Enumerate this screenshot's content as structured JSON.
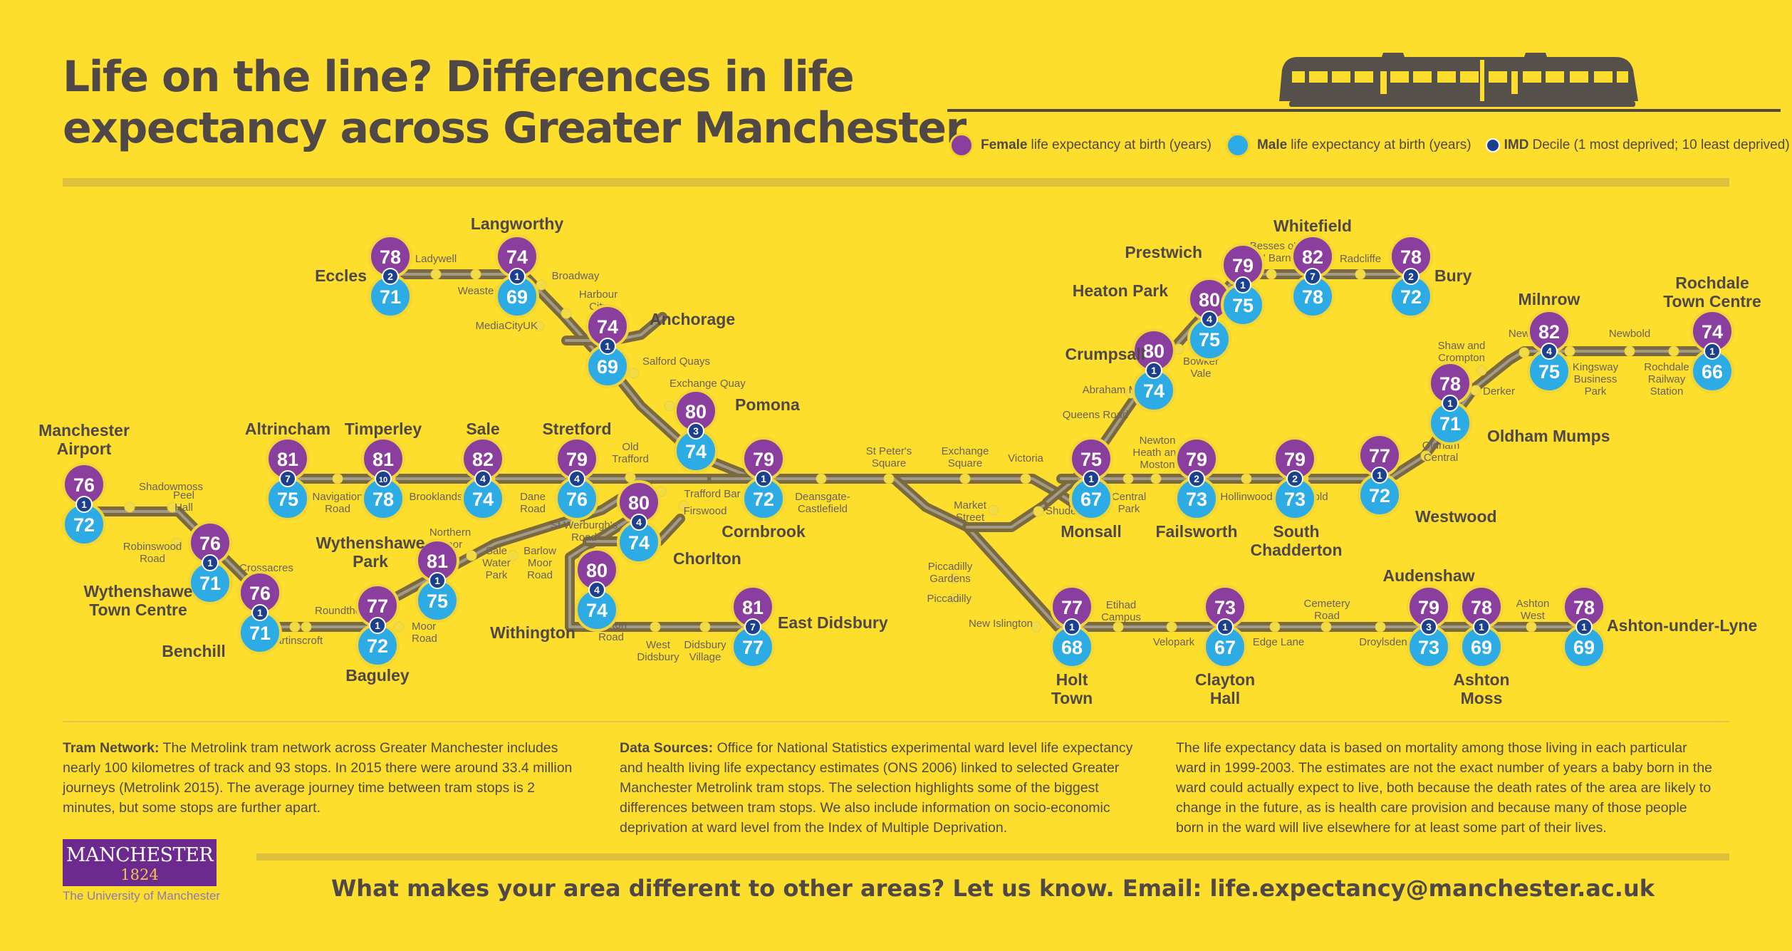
{
  "header": {
    "title_line1": "Life on the line? Differences in life",
    "title_line2": "expectancy across Greater Manchester"
  },
  "legend": {
    "female_bold": "Female",
    "female_text": "life expectancy at birth (years)",
    "male_bold": "Male",
    "male_text": "life expectancy at birth (years)",
    "imd_bold": "IMD",
    "imd_text": "Decile (1 most deprived; 10 least deprived)"
  },
  "colors": {
    "background": "#FDDE2D",
    "female": "#8A3E9E",
    "male": "#2CABE4",
    "imd": "#1C3F8E",
    "track": "#8A7848",
    "text": "#4F4847"
  },
  "stations": [
    {
      "id": "manchester_airport",
      "name": "Manchester\nAirport",
      "female": 76,
      "male": 72,
      "imd": 1
    },
    {
      "id": "wythenshawe_town_centre",
      "name": "Wythenshawe\nTown Centre",
      "female": 76,
      "male": 71,
      "imd": 1
    },
    {
      "id": "benchill",
      "name": "Benchill",
      "female": 76,
      "male": 71,
      "imd": 1
    },
    {
      "id": "baguley",
      "name": "Baguley",
      "female": 77,
      "male": 72,
      "imd": 1
    },
    {
      "id": "wythenshawe_park",
      "name": "Wythenshawe\nPark",
      "female": 81,
      "male": 75,
      "imd": 1
    },
    {
      "id": "altrincham",
      "name": "Altrincham",
      "female": 81,
      "male": 75,
      "imd": 7
    },
    {
      "id": "timperley",
      "name": "Timperley",
      "female": 81,
      "male": 78,
      "imd": 10
    },
    {
      "id": "sale",
      "name": "Sale",
      "female": 82,
      "male": 74,
      "imd": 4
    },
    {
      "id": "stretford",
      "name": "Stretford",
      "female": 79,
      "male": 76,
      "imd": 4
    },
    {
      "id": "chorlton",
      "name": "Chorlton",
      "female": 80,
      "male": 74,
      "imd": 4
    },
    {
      "id": "withington",
      "name": "Withington",
      "female": 80,
      "male": 74,
      "imd": 4
    },
    {
      "id": "east_didsbury",
      "name": "East Didsbury",
      "female": 81,
      "male": 77,
      "imd": 7
    },
    {
      "id": "eccles",
      "name": "Eccles",
      "female": 78,
      "male": 71,
      "imd": 2
    },
    {
      "id": "langworthy",
      "name": "Langworthy",
      "female": 74,
      "male": 69,
      "imd": 1
    },
    {
      "id": "anchorage",
      "name": "Anchorage",
      "female": 74,
      "male": 69,
      "imd": 1
    },
    {
      "id": "pomona",
      "name": "Pomona",
      "female": 80,
      "male": 74,
      "imd": 3
    },
    {
      "id": "cornbrook",
      "name": "Cornbrook",
      "female": 79,
      "male": 72,
      "imd": 1
    },
    {
      "id": "monsall",
      "name": "Monsall",
      "female": 75,
      "male": 67,
      "imd": 1
    },
    {
      "id": "failsworth",
      "name": "Failsworth",
      "female": 79,
      "male": 73,
      "imd": 2
    },
    {
      "id": "south_chadderton",
      "name": "South\nChadderton",
      "female": 79,
      "male": 73,
      "imd": 2
    },
    {
      "id": "westwood",
      "name": "Westwood",
      "female": 77,
      "male": 72,
      "imd": 1
    },
    {
      "id": "oldham_mumps",
      "name": "Oldham Mumps",
      "female": 78,
      "male": 71,
      "imd": 1
    },
    {
      "id": "milnrow",
      "name": "Milnrow",
      "female": 82,
      "male": 75,
      "imd": 4
    },
    {
      "id": "rochdale_town_centre",
      "name": "Rochdale\nTown Centre",
      "female": 74,
      "male": 66,
      "imd": 1
    },
    {
      "id": "crumpsall",
      "name": "Crumpsall",
      "female": 80,
      "male": 74,
      "imd": 1
    },
    {
      "id": "heaton_park",
      "name": "Heaton Park",
      "female": 80,
      "male": 75,
      "imd": 4
    },
    {
      "id": "prestwich",
      "name": "Prestwich",
      "female": 79,
      "male": 75,
      "imd": 1
    },
    {
      "id": "whitefield",
      "name": "Whitefield",
      "female": 82,
      "male": 78,
      "imd": 7
    },
    {
      "id": "bury",
      "name": "Bury",
      "female": 78,
      "male": 72,
      "imd": 2
    },
    {
      "id": "holt_town",
      "name": "Holt\nTown",
      "female": 77,
      "male": 68,
      "imd": 1
    },
    {
      "id": "clayton_hall",
      "name": "Clayton\nHall",
      "female": 73,
      "male": 67,
      "imd": 1
    },
    {
      "id": "audenshaw",
      "name": "Audenshaw",
      "female": 79,
      "male": 73,
      "imd": 3
    },
    {
      "id": "ashton_moss",
      "name": "Ashton\nMoss",
      "female": 78,
      "male": 69,
      "imd": 1
    },
    {
      "id": "ashton_under_lyne",
      "name": "Ashton-under-Lyne",
      "female": 78,
      "male": 69,
      "imd": 1
    }
  ],
  "minor_stops": [
    "Shadowmoss",
    "Peel\nHall",
    "Robinswood\nRoad",
    "Crossacres",
    "Roundthorn",
    "Martinscroft",
    "Moor\nRoad",
    "Northern\nMoor",
    "Sale\nWater\nPark",
    "Barlow\nMoor\nRoad",
    "St Werburgh's\nRoad",
    "Burton\nRoad",
    "West\nDidsbury",
    "Didsbury\nVillage",
    "Navigation\nRoad",
    "Brooklands",
    "Dane\nRoad",
    "Old\nTrafford",
    "Trafford Bar",
    "Firswood",
    "Ladywell",
    "Weaste",
    "Broadway",
    "Harbour\nCity",
    "MediaCityUK",
    "Salford Quays",
    "Exchange Quay",
    "Deansgate-\nCastlefield",
    "St Peter's\nSquare",
    "Exchange\nSquare",
    "Victoria",
    "Market\nStreet",
    "Shudehill",
    "Piccadilly\nGardens",
    "Piccadilly",
    "New Islington",
    "Etihad\nCampus",
    "Velopark",
    "Edge Lane",
    "Cemetery\nRoad",
    "Droylsden",
    "Ashton\nWest",
    "Central\nPark",
    "Newton\nHeath and\nMoston",
    "Hollinwood",
    "Freehold",
    "Oldham\nCentral",
    "Derker",
    "Shaw and\nCrompton",
    "Newhey",
    "Kingsway\nBusiness\nPark",
    "Newbold",
    "Rochdale\nRailway\nStation",
    "Queens Road",
    "Abraham Moss",
    "Bowker\nVale",
    "Besses o'\nth' Barn",
    "Radcliffe"
  ],
  "footer": {
    "tram_network_bold": "Tram Network:",
    "tram_network_text": "The Metrolink tram network across Greater Manchester includes nearly 100 kilometres of track and 93 stops. In 2015 there were around 33.4 million journeys (Metrolink 2015). The average journey time between tram stops is 2 minutes, but some stops are further apart.",
    "data_sources_bold": "Data Sources:",
    "data_sources_text": "Office for National Statistics experimental ward level life expectancy and health living life expectancy estimates (ONS 2006) linked to selected Greater Manchester Metrolink tram stops. The selection highlights some of the biggest differences between tram stops. We also include information on socio-economic deprivation at ward level from the Index of Multiple Deprivation.",
    "note_text": "The life expectancy data is based on mortality among those living in each particular ward in 1999-2003. The estimates are not the exact number of years a baby born in the ward could actually expect to live, both because the death rates of the area are likely to change in the future, as is health care provision and because many of those people born in the ward will live elsewhere for at least some part of their lives.",
    "cta": "What makes your area different to other areas? Let us know. Email: life.expectancy@manchester.ac.uk"
  },
  "logo": {
    "name": "MANCHESTER",
    "year": "1824",
    "university": "The University of Manchester"
  }
}
